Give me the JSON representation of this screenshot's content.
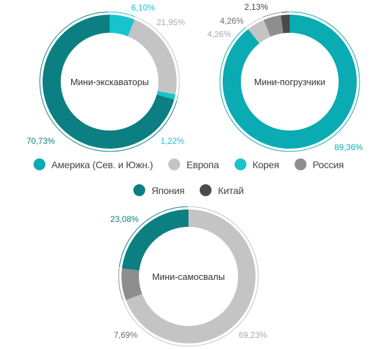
{
  "legend": [
    {
      "label": "Америка (Сев. и Южн.)",
      "color": "#0aabb3"
    },
    {
      "label": "Европа",
      "color": "#c4c4c4"
    },
    {
      "label": "Корея",
      "color": "#17c3cc"
    },
    {
      "label": "Россия",
      "color": "#8e8e8e"
    },
    {
      "label": "Япония",
      "color": "#0c7f83"
    },
    {
      "label": "Китай",
      "color": "#4a4a4a"
    }
  ],
  "chart_data": [
    {
      "type": "pie",
      "variant": "donut",
      "title": "Мини-экскаваторы",
      "slices": [
        {
          "category": "Корея",
          "value": 6.1,
          "label": "6,10%",
          "color": "#17c3cc"
        },
        {
          "category": "Европа",
          "value": 21.95,
          "label": "21,95%",
          "color": "#c4c4c4"
        },
        {
          "category": "Корея",
          "value": 1.22,
          "label": "1,22%",
          "color": "#17c3cc"
        },
        {
          "category": "Япония",
          "value": 70.73,
          "label": "70,73%",
          "color": "#0c7f83"
        }
      ]
    },
    {
      "type": "pie",
      "variant": "donut",
      "title": "Мини-погрузчики",
      "slices": [
        {
          "category": "Америка (Сев. и Южн.)",
          "value": 89.36,
          "label": "89,36%",
          "color": "#0aabb3"
        },
        {
          "category": "Европа",
          "value": 4.26,
          "label": "4,26%",
          "color": "#c4c4c4"
        },
        {
          "category": "Россия",
          "value": 4.26,
          "label": "4,26%",
          "color": "#8e8e8e"
        },
        {
          "category": "Китай",
          "value": 2.13,
          "label": "2,13%",
          "color": "#4a4a4a"
        }
      ]
    },
    {
      "type": "pie",
      "variant": "donut",
      "title": "Мини-самосвалы",
      "slices": [
        {
          "category": "Европа",
          "value": 69.23,
          "label": "69,23%",
          "color": "#c4c4c4"
        },
        {
          "category": "Россия",
          "value": 7.69,
          "label": "7,69%",
          "color": "#8e8e8e"
        },
        {
          "category": "Япония",
          "value": 23.08,
          "label": "23,08%",
          "color": "#0c7f83"
        }
      ]
    }
  ]
}
